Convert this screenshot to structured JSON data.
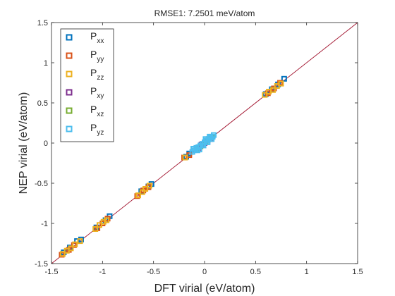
{
  "chart_data": {
    "type": "scatter",
    "title": "RMSE1: 7.2501 meV/atom",
    "xlabel": "DFT virial (eV/atom)",
    "ylabel": "NEP virial (eV/atom)",
    "xlim": [
      -1.5,
      1.5
    ],
    "ylim": [
      -1.5,
      1.5
    ],
    "xticks": [
      "-1.5",
      "-1",
      "-0.5",
      "0",
      "0.5",
      "1",
      "1.5"
    ],
    "yticks": [
      "-1.5",
      "-1",
      "-0.5",
      "0",
      "0.5",
      "1",
      "1.5"
    ],
    "grid": false,
    "legend_position": "top-left",
    "reference_line": {
      "x": [
        -1.5,
        1.5
      ],
      "y": [
        -1.5,
        1.5
      ],
      "color": "#a2142f"
    },
    "series": [
      {
        "name": "P",
        "sub": "xx",
        "color": "#0072bd",
        "marker": "square",
        "points": [
          [
            -1.38,
            -1.36
          ],
          [
            -1.32,
            -1.3
          ],
          [
            -1.25,
            -1.22
          ],
          [
            -1.21,
            -1.2
          ],
          [
            -1.06,
            -1.05
          ],
          [
            -0.97,
            -0.96
          ],
          [
            -0.93,
            -0.91
          ],
          [
            -0.62,
            -0.6
          ],
          [
            -0.55,
            -0.54
          ],
          [
            -0.52,
            -0.51
          ],
          [
            -0.18,
            -0.17
          ],
          [
            -0.15,
            -0.13
          ],
          [
            0.6,
            0.61
          ],
          [
            0.66,
            0.67
          ],
          [
            0.72,
            0.73
          ],
          [
            0.78,
            0.8
          ]
        ]
      },
      {
        "name": "P",
        "sub": "yy",
        "color": "#d95319",
        "marker": "square",
        "points": [
          [
            -1.4,
            -1.39
          ],
          [
            -1.33,
            -1.33
          ],
          [
            -1.28,
            -1.27
          ],
          [
            -1.05,
            -1.06
          ],
          [
            -1.0,
            -1.0
          ],
          [
            -0.95,
            -0.94
          ],
          [
            -0.66,
            -0.66
          ],
          [
            -0.6,
            -0.59
          ],
          [
            -0.55,
            -0.55
          ],
          [
            -0.2,
            -0.18
          ],
          [
            -0.15,
            -0.15
          ],
          [
            0.62,
            0.62
          ],
          [
            0.68,
            0.68
          ],
          [
            0.74,
            0.75
          ]
        ]
      },
      {
        "name": "P",
        "sub": "zz",
        "color": "#edb120",
        "marker": "square",
        "points": [
          [
            -1.39,
            -1.38
          ],
          [
            -1.35,
            -1.34
          ],
          [
            -1.31,
            -1.31
          ],
          [
            -1.27,
            -1.26
          ],
          [
            -1.22,
            -1.22
          ],
          [
            -1.07,
            -1.07
          ],
          [
            -1.03,
            -1.02
          ],
          [
            -0.99,
            -0.98
          ],
          [
            -0.96,
            -0.96
          ],
          [
            -0.65,
            -0.65
          ],
          [
            -0.61,
            -0.61
          ],
          [
            -0.58,
            -0.57
          ],
          [
            -0.54,
            -0.53
          ],
          [
            -0.19,
            -0.18
          ],
          [
            0.59,
            0.6
          ],
          [
            0.63,
            0.64
          ],
          [
            0.67,
            0.66
          ],
          [
            0.71,
            0.71
          ],
          [
            0.75,
            0.74
          ]
        ]
      },
      {
        "name": "P",
        "sub": "xy",
        "color": "#7e2f8e",
        "marker": "square",
        "points": [
          [
            -0.06,
            -0.06
          ],
          [
            -0.03,
            -0.02
          ],
          [
            0.0,
            0.0
          ],
          [
            0.03,
            0.03
          ],
          [
            0.06,
            0.05
          ]
        ]
      },
      {
        "name": "P",
        "sub": "xz",
        "color": "#77ac30",
        "marker": "square",
        "points": [
          [
            -0.08,
            -0.07
          ],
          [
            -0.04,
            -0.04
          ],
          [
            0.01,
            0.01
          ],
          [
            0.04,
            0.05
          ],
          [
            0.07,
            0.07
          ]
        ]
      },
      {
        "name": "P",
        "sub": "yz",
        "color": "#4dbeee",
        "marker": "square",
        "points": [
          [
            -0.12,
            -0.11
          ],
          [
            -0.1,
            -0.09
          ],
          [
            -0.08,
            -0.06
          ],
          [
            -0.06,
            -0.05
          ],
          [
            -0.04,
            -0.03
          ],
          [
            -0.02,
            -0.01
          ],
          [
            0.0,
            0.01
          ],
          [
            0.02,
            0.03
          ],
          [
            0.04,
            0.05
          ],
          [
            0.06,
            0.07
          ],
          [
            0.08,
            0.08
          ],
          [
            0.09,
            0.1
          ],
          [
            -0.11,
            -0.07
          ],
          [
            -0.07,
            -0.09
          ],
          [
            -0.01,
            -0.03
          ],
          [
            0.03,
            0.01
          ],
          [
            0.07,
            0.05
          ],
          [
            0.05,
            0.08
          ],
          [
            -0.05,
            -0.08
          ],
          [
            0.01,
            0.05
          ]
        ]
      }
    ]
  }
}
